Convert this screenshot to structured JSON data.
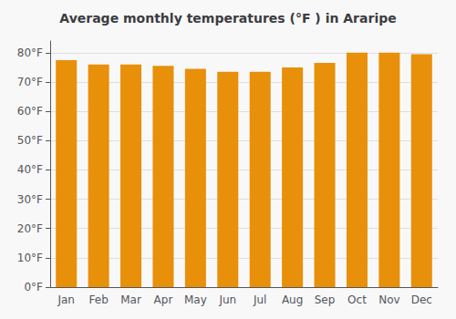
{
  "chart_data": {
    "type": "bar",
    "title": "Average monthly temperatures (°F ) in Araripe",
    "categories": [
      "Jan",
      "Feb",
      "Mar",
      "Apr",
      "May",
      "Jun",
      "Jul",
      "Aug",
      "Sep",
      "Oct",
      "Nov",
      "Dec"
    ],
    "values": [
      77.5,
      76.0,
      76.0,
      75.5,
      74.5,
      73.5,
      73.5,
      75.0,
      76.5,
      80.0,
      80.0,
      79.5
    ],
    "color": "#E8900A",
    "ylim": [
      0,
      84
    ],
    "yticks": [
      {
        "value": 0,
        "label": "0°F"
      },
      {
        "value": 10,
        "label": "10°F"
      },
      {
        "value": 20,
        "label": "20°F"
      },
      {
        "value": 30,
        "label": "30°F"
      },
      {
        "value": 40,
        "label": "40°F"
      },
      {
        "value": 50,
        "label": "50°F"
      },
      {
        "value": 60,
        "label": "60°F"
      },
      {
        "value": 70,
        "label": "70°F"
      },
      {
        "value": 80,
        "label": "80°F"
      }
    ],
    "grid": true
  }
}
